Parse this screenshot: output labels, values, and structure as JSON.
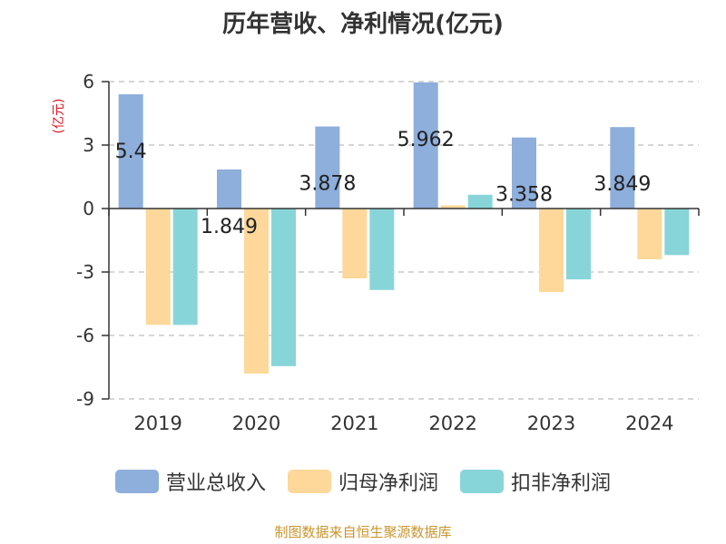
{
  "chart_data": {
    "type": "bar",
    "title": "历年营收、净利情况(亿元)",
    "ylabel": "(亿元)",
    "categories": [
      "2019",
      "2020",
      "2021",
      "2022",
      "2023",
      "2024"
    ],
    "series": [
      {
        "name": "营业总收入",
        "color": "#8eaedc",
        "values": [
          5.4,
          1.849,
          3.878,
          5.962,
          3.358,
          3.849
        ],
        "data_labels": [
          "5.4",
          "1.849",
          "3.878",
          "5.962",
          "3.358",
          "3.849"
        ]
      },
      {
        "name": "归母净利润",
        "color": "#fdd89a",
        "values": [
          -5.5,
          -7.8,
          -3.3,
          0.15,
          -3.95,
          -2.4
        ]
      },
      {
        "name": "扣非净利润",
        "color": "#88d5d9",
        "values": [
          -5.5,
          -7.45,
          -3.85,
          0.65,
          -3.35,
          -2.2
        ]
      }
    ],
    "yticks": [
      "6",
      "3",
      "0",
      "-3",
      "-6",
      "-9"
    ],
    "ytick_values": [
      6,
      3,
      0,
      -3,
      -6,
      -9
    ],
    "ylim": [
      -9,
      6
    ],
    "grid": true,
    "legend_position": "bottom"
  },
  "source_note": "制图数据来自恒生聚源数据库"
}
